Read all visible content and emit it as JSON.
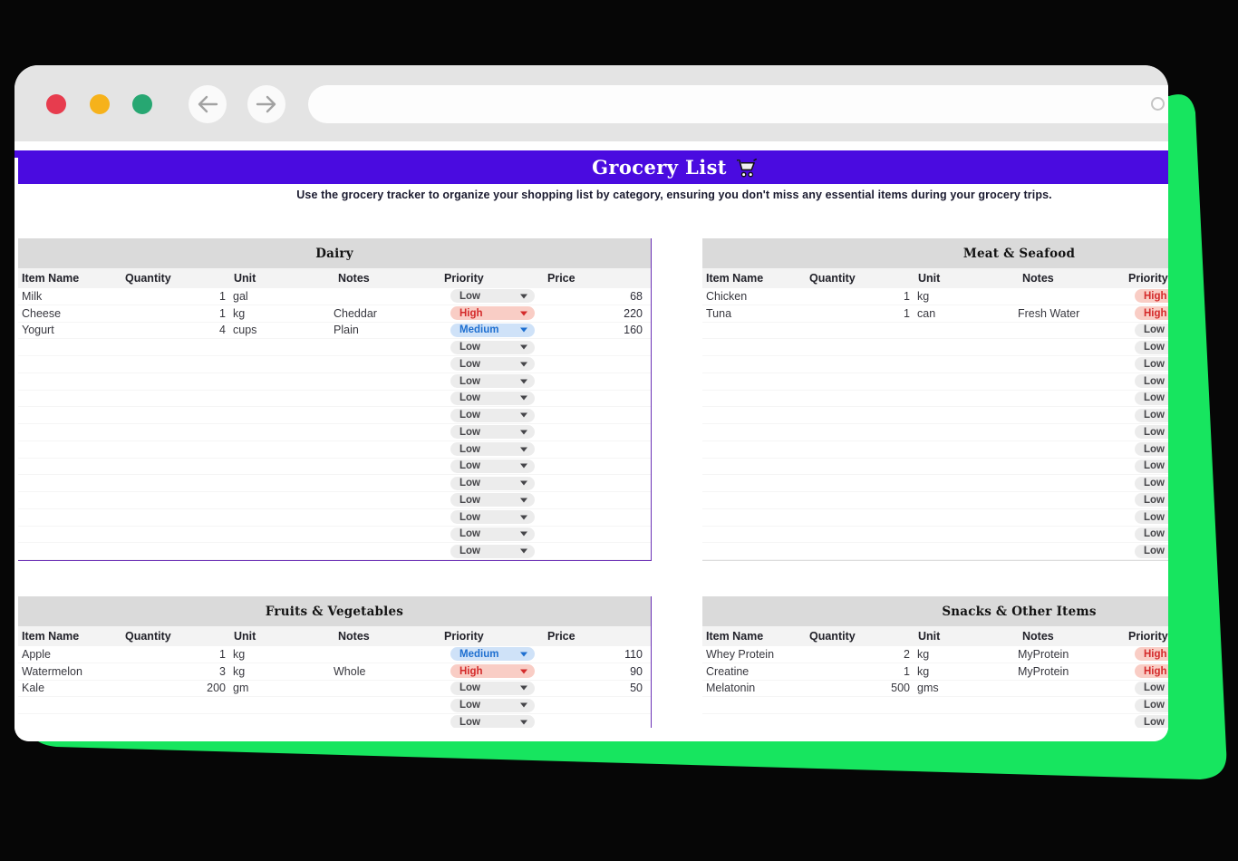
{
  "browser": {
    "close_button": "close",
    "minimize_button": "minimize",
    "zoom_button": "zoom",
    "back_icon": "arrow-left",
    "forward_icon": "arrow-right",
    "url_value": "",
    "search_icon": "magnifier"
  },
  "header": {
    "title": "Grocery List",
    "cart_icon": "shopping-cart",
    "subtitle": "Use the grocery tracker to organize your shopping list by category, ensuring you don't miss any essential items during your grocery trips."
  },
  "columns": [
    "Item Name",
    "Quantity",
    "Unit",
    "Notes",
    "Priority",
    "Price"
  ],
  "priority_levels": [
    "Low",
    "Medium",
    "High"
  ],
  "tables": [
    {
      "title": "Dairy",
      "rows": [
        {
          "item": "Milk",
          "qty": "1",
          "unit": "gal",
          "notes": "",
          "priority": "Low",
          "price": "68"
        },
        {
          "item": "Cheese",
          "qty": "1",
          "unit": "kg",
          "notes": "Cheddar",
          "priority": "High",
          "price": "220"
        },
        {
          "item": "Yogurt",
          "qty": "4",
          "unit": "cups",
          "notes": "Plain",
          "priority": "Medium",
          "price": "160"
        }
      ],
      "empty_rows": 13
    },
    {
      "title": "Meat & Seafood",
      "rows": [
        {
          "item": "Chicken",
          "qty": "1",
          "unit": "kg",
          "notes": "",
          "priority": "High",
          "price": ""
        },
        {
          "item": "Tuna",
          "qty": "1",
          "unit": "can",
          "notes": "Fresh Water",
          "priority": "High",
          "price": ""
        }
      ],
      "empty_rows": 14
    },
    {
      "title": "Fruits & Vegetables",
      "rows": [
        {
          "item": "Apple",
          "qty": "1",
          "unit": "kg",
          "notes": "",
          "priority": "Medium",
          "price": "110"
        },
        {
          "item": "Watermelon",
          "qty": "3",
          "unit": "kg",
          "notes": "Whole",
          "priority": "High",
          "price": "90"
        },
        {
          "item": "Kale",
          "qty": "200",
          "unit": "gm",
          "notes": "",
          "priority": "Low",
          "price": "50"
        }
      ],
      "empty_rows": 2
    },
    {
      "title": "Snacks & Other Items",
      "rows": [
        {
          "item": "Whey Protein",
          "qty": "2",
          "unit": "kg",
          "notes": "MyProtein",
          "priority": "High",
          "price": ""
        },
        {
          "item": "Creatine",
          "qty": "1",
          "unit": "kg",
          "notes": "MyProtein",
          "priority": "High",
          "price": ""
        },
        {
          "item": "Melatonin",
          "qty": "500",
          "unit": "gms",
          "notes": "",
          "priority": "Low",
          "price": ""
        }
      ],
      "empty_rows": 2
    }
  ],
  "colors": {
    "banner_purple": "#4A0BE0",
    "green_accent": "#17E55F",
    "traffic_red": "#E73C4E",
    "traffic_yellow": "#F6B21B",
    "traffic_green": "#27A772",
    "table_band_gray": "#DADADA",
    "table_border_purple": "#6B30B5",
    "priority_low_bg": "#ECECEC",
    "priority_low_text": "#454549",
    "priority_medium_bg": "#CFE2F8",
    "priority_medium_text": "#1E6FD0",
    "priority_high_bg": "#F9CDC5",
    "priority_high_text": "#D42A2A"
  }
}
